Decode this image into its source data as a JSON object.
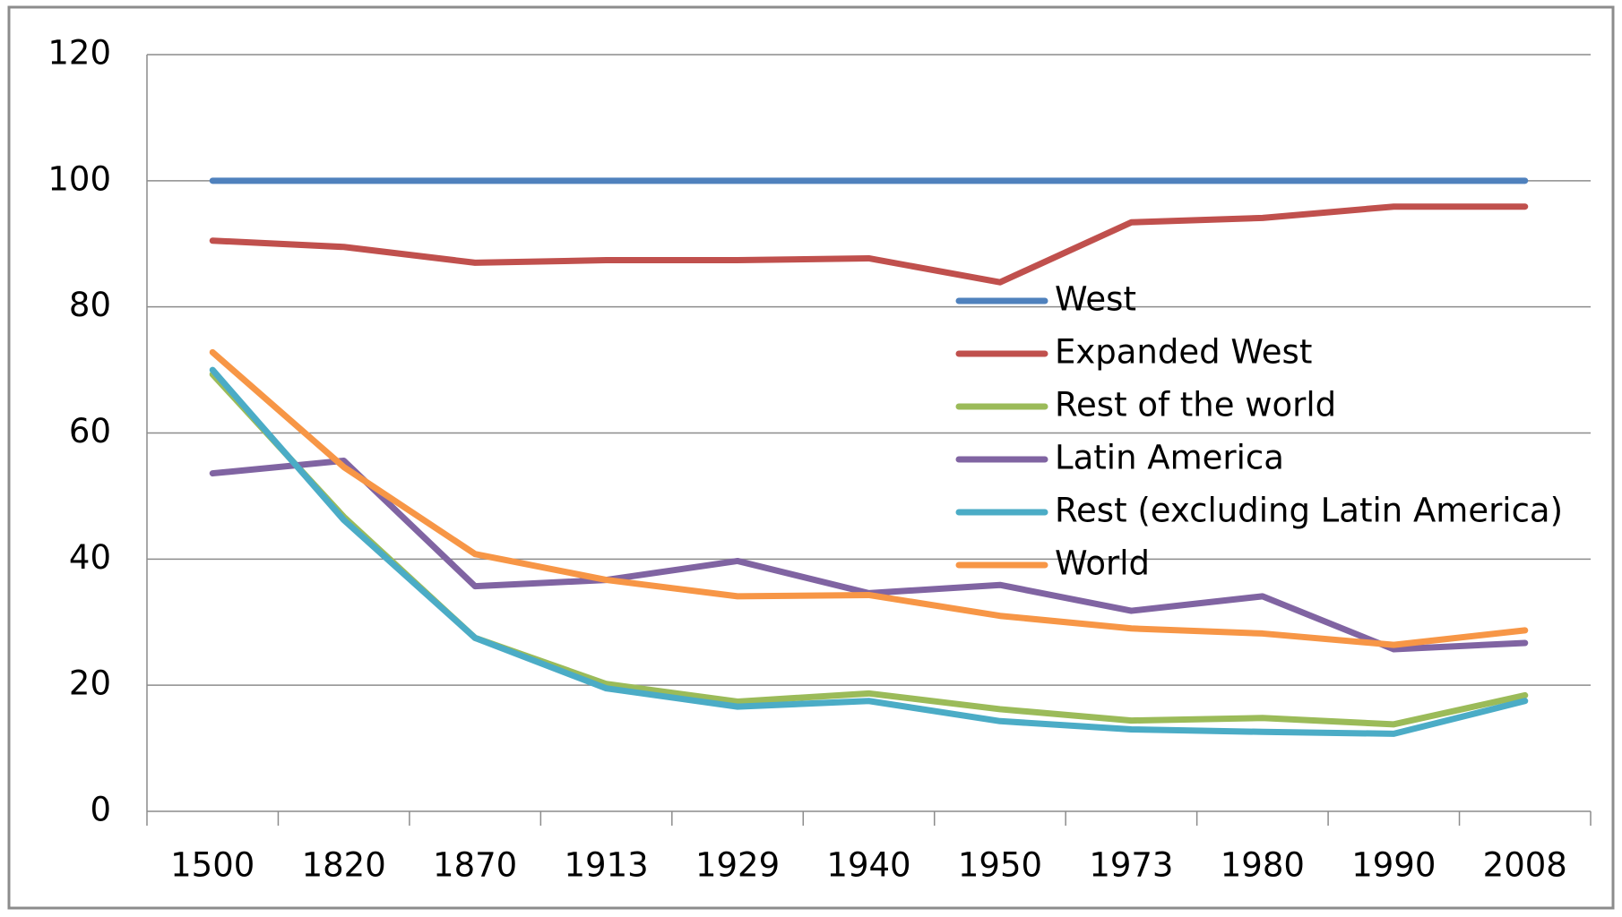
{
  "chart_data": {
    "type": "line",
    "categories": [
      "1500",
      "1820",
      "1870",
      "1913",
      "1929",
      "1940",
      "1950",
      "1973",
      "1980",
      "1990",
      "2008"
    ],
    "series": [
      {
        "name": "West",
        "color": "#4f81bd",
        "values": [
          100,
          100,
          100,
          100,
          100,
          100,
          100,
          100,
          100,
          100,
          100
        ]
      },
      {
        "name": "Expanded West",
        "color": "#c0504d",
        "values": [
          90.5,
          89.5,
          87,
          87.4,
          87.4,
          87.7,
          83.9,
          93.4,
          94.1,
          95.9,
          95.9
        ]
      },
      {
        "name": "Rest of the world",
        "color": "#9bbb59",
        "values": [
          69.3,
          46.7,
          27.5,
          20.2,
          17.4,
          18.7,
          16.2,
          14.4,
          14.8,
          13.8,
          18.4
        ]
      },
      {
        "name": "Latin America",
        "color": "#8064a2",
        "values": [
          53.6,
          55.6,
          35.7,
          36.7,
          39.7,
          34.6,
          35.9,
          31.8,
          34.1,
          25.7,
          26.7
        ]
      },
      {
        "name": "Rest (excluding Latin America)",
        "color": "#4bacc6",
        "values": [
          70,
          46.2,
          27.5,
          19.5,
          16.6,
          17.5,
          14.3,
          13,
          12.6,
          12.3,
          17.5
        ]
      },
      {
        "name": "World",
        "color": "#f79646",
        "values": [
          72.8,
          54.6,
          40.8,
          36.7,
          34.1,
          34.3,
          31,
          29,
          28.2,
          26.4,
          28.7
        ]
      }
    ],
    "ylim": [
      0,
      120
    ],
    "yticks": [
      0,
      20,
      40,
      60,
      80,
      100,
      120
    ],
    "grid": true
  }
}
